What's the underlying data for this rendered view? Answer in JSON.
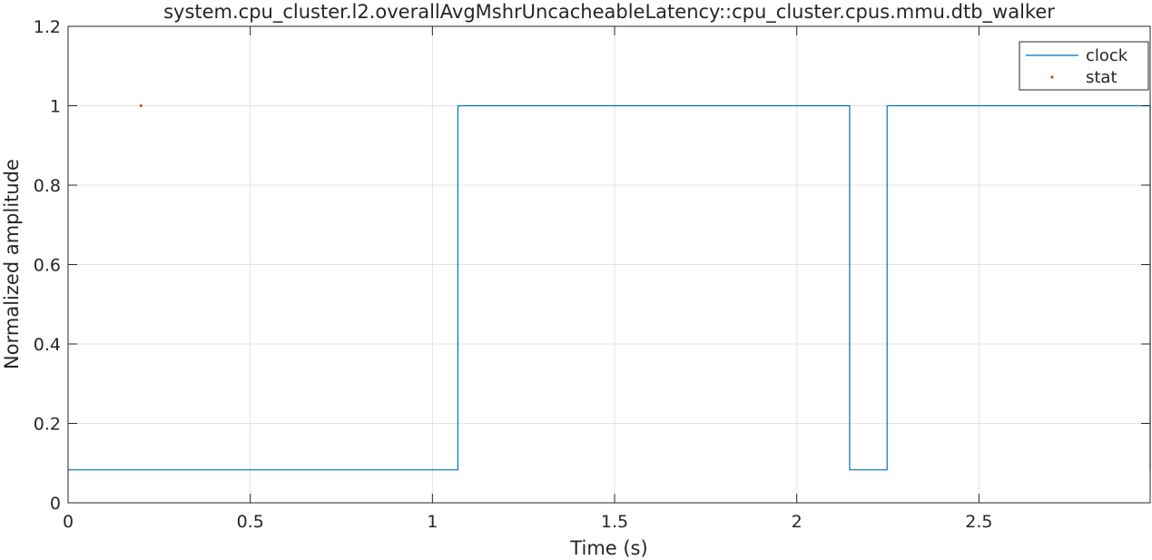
{
  "chart_data": {
    "type": "line",
    "title": "system.cpu_cluster.l2.overallAvgMshrUncacheableLatency::cpu_cluster.cpus.mmu.dtb_walker",
    "xlabel": "Time (s)",
    "ylabel": "Normalized amplitude",
    "xlim": [
      0,
      2.97
    ],
    "ylim": [
      0,
      1.2
    ],
    "x_ticks": [
      0,
      0.5,
      1,
      1.5,
      2,
      2.5
    ],
    "x_tick_labels": [
      "0",
      "0.5",
      "1",
      "1.5",
      "2",
      "2.5"
    ],
    "y_ticks": [
      0,
      0.2,
      0.4,
      0.6,
      0.8,
      1,
      1.2
    ],
    "y_tick_labels": [
      "0",
      "0.2",
      "0.4",
      "0.6",
      "0.8",
      "1",
      "1.2"
    ],
    "grid": true,
    "legend_position": "top-right",
    "series": [
      {
        "name": "clock",
        "style": "step-line",
        "color": "#0072bd",
        "points": [
          [
            0,
            0.083
          ],
          [
            1.07,
            0.083
          ],
          [
            1.07,
            1
          ],
          [
            2.145,
            1
          ],
          [
            2.145,
            0.083
          ],
          [
            2.248,
            0.083
          ],
          [
            2.248,
            1
          ],
          [
            2.97,
            1
          ],
          [
            2.97,
            0.083
          ]
        ]
      },
      {
        "name": "stat",
        "style": "markers",
        "color": "#d95319",
        "points": [
          [
            0.2,
            1
          ]
        ]
      }
    ]
  }
}
